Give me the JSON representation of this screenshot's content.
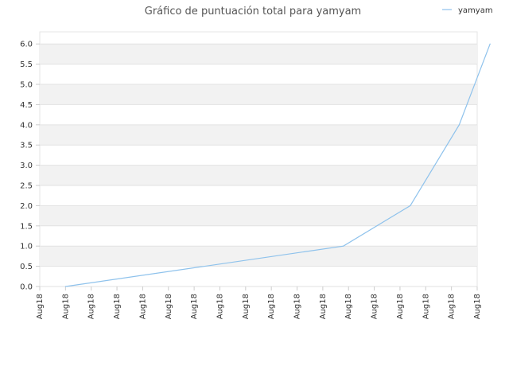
{
  "chart_data": {
    "type": "line",
    "title": "Gráfico de puntuación total para yamyam",
    "xlabel": "",
    "ylabel": "",
    "x_tick_labels": [
      "Aug18",
      "Aug18",
      "Aug18",
      "Aug18",
      "Aug18",
      "Aug18",
      "Aug18",
      "Aug18",
      "Aug18",
      "Aug18",
      "Aug18",
      "Aug18",
      "Aug18",
      "Aug18",
      "Aug18",
      "Aug18",
      "Aug18",
      "Aug18"
    ],
    "y_tick_labels": [
      "0.0",
      "0.5",
      "1.0",
      "1.5",
      "2.0",
      "2.5",
      "3.0",
      "3.5",
      "4.0",
      "4.5",
      "5.0",
      "5.5",
      "6.0"
    ],
    "ylim": [
      0,
      6.3
    ],
    "y_ticks": [
      0,
      0.5,
      1,
      1.5,
      2,
      2.5,
      3,
      3.5,
      4,
      4.5,
      5,
      5.5,
      6
    ],
    "grid": true,
    "legend_position": "top-right",
    "series": [
      {
        "name": "yamyam",
        "color": "#8ec2ec",
        "points": [
          {
            "x_index": 1,
            "y": 0
          },
          {
            "x_index": 11.8,
            "y": 1
          },
          {
            "x_index": 14.4,
            "y": 2
          },
          {
            "x_index": 16.3,
            "y": 4
          },
          {
            "x_index": 17.5,
            "y": 6
          }
        ]
      }
    ]
  }
}
